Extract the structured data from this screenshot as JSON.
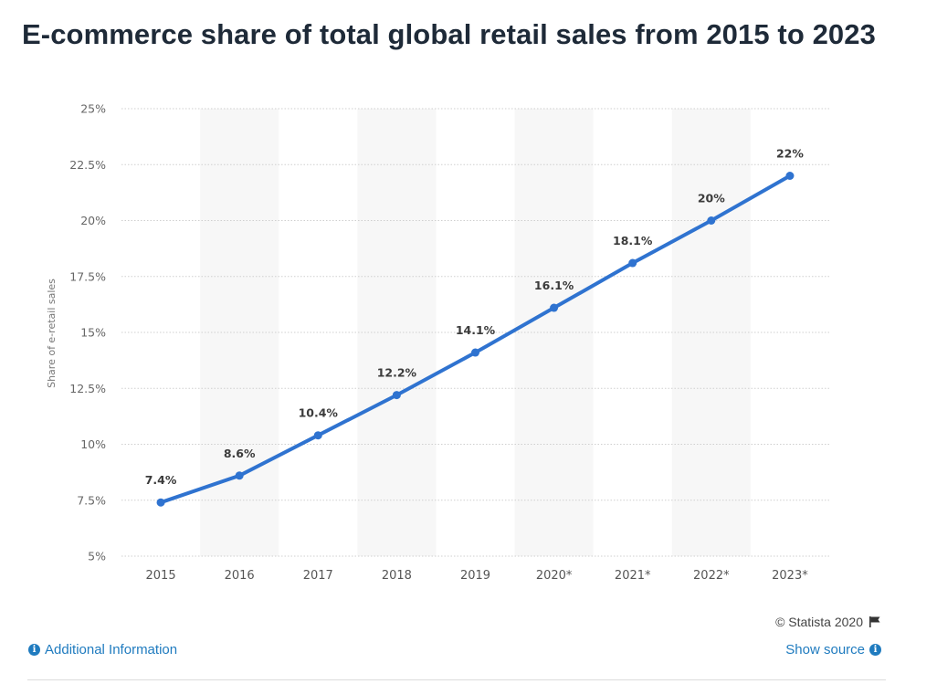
{
  "title": "E-commerce share of total global retail sales from 2015 to 2023",
  "chart_data": {
    "type": "line",
    "categories": [
      "2015",
      "2016",
      "2017",
      "2018",
      "2019",
      "2020*",
      "2021*",
      "2022*",
      "2023*"
    ],
    "values": [
      7.4,
      8.6,
      10.4,
      12.2,
      14.1,
      16.1,
      18.1,
      20,
      22
    ],
    "data_labels": [
      "7.4%",
      "8.6%",
      "10.4%",
      "12.2%",
      "14.1%",
      "16.1%",
      "18.1%",
      "20%",
      "22%"
    ],
    "ylabel": "Share of e-retail sales",
    "xlabel": "",
    "ylim": [
      5,
      25
    ],
    "yticks": [
      5,
      7.5,
      10,
      12.5,
      15,
      17.5,
      20,
      22.5,
      25
    ],
    "ytick_labels": [
      "5%",
      "7.5%",
      "10%",
      "12.5%",
      "15%",
      "17.5%",
      "20%",
      "22.5%",
      "25%"
    ],
    "grid": true,
    "line_color": "#2f73d0",
    "band_color": "#f7f7f7"
  },
  "footer": {
    "credit": "© Statista 2020",
    "additional_info": "Additional Information",
    "show_source": "Show source"
  }
}
